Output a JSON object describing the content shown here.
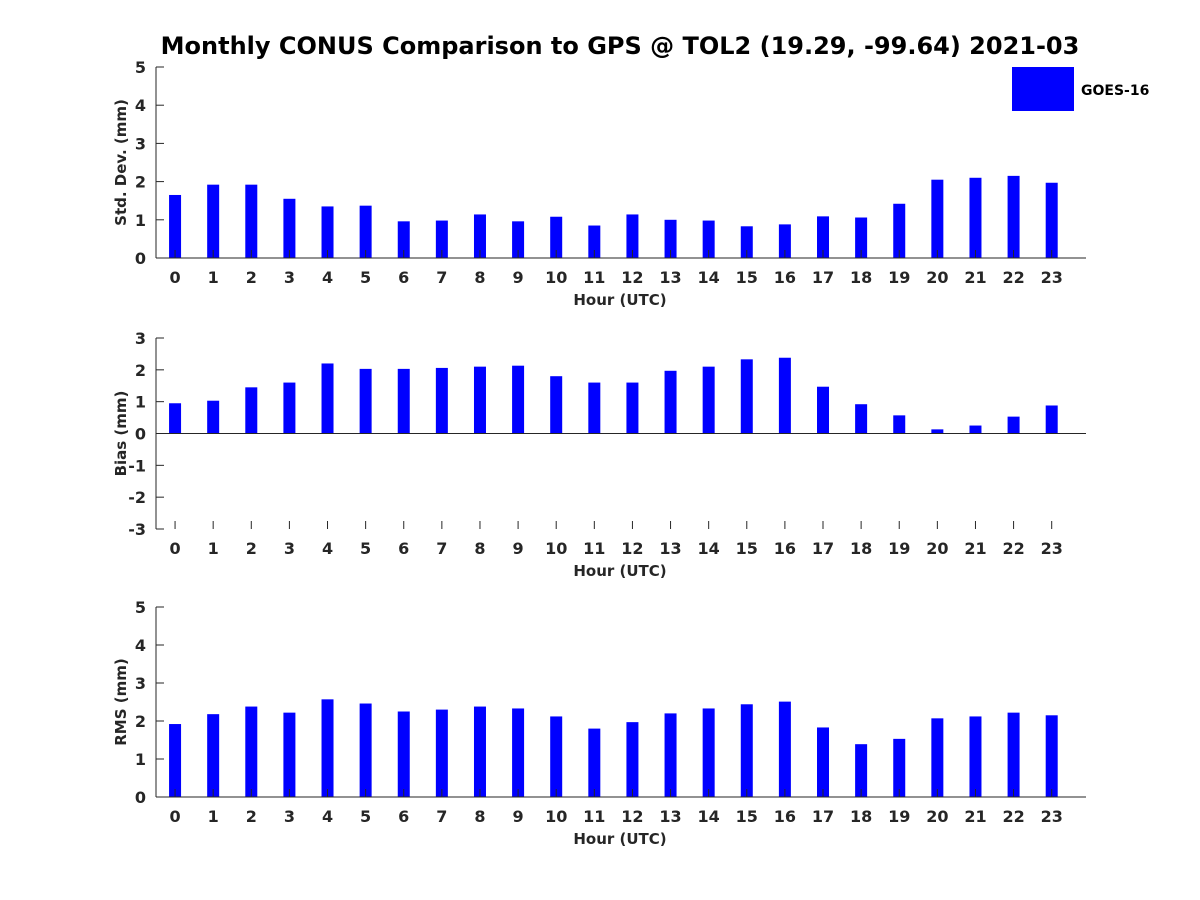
{
  "title": "Monthly CONUS Comparison to GPS @ TOL2 (19.29, -99.64) 2021-03",
  "legend": {
    "label": "GOES-16",
    "color": "#0000ff"
  },
  "colors": {
    "bar": "#0000ff",
    "axis": "#262626"
  },
  "chart_data": [
    {
      "type": "bar",
      "title": "",
      "xlabel": "Hour (UTC)",
      "ylabel": "Std. Dev. (mm)",
      "categories": [
        "0",
        "1",
        "2",
        "3",
        "4",
        "5",
        "6",
        "7",
        "8",
        "9",
        "10",
        "11",
        "12",
        "13",
        "14",
        "15",
        "16",
        "17",
        "18",
        "19",
        "20",
        "21",
        "22",
        "23"
      ],
      "values": [
        1.65,
        1.92,
        1.92,
        1.55,
        1.35,
        1.37,
        0.96,
        0.98,
        1.14,
        0.96,
        1.08,
        0.85,
        1.14,
        1.0,
        0.98,
        0.83,
        0.88,
        1.09,
        1.06,
        1.42,
        2.05,
        2.1,
        2.15,
        1.97
      ],
      "ylim": [
        0,
        5
      ],
      "yticks": [
        "0",
        "1",
        "2",
        "3",
        "4",
        "5"
      ],
      "series_name": "GOES-16"
    },
    {
      "type": "bar",
      "title": "",
      "xlabel": "Hour (UTC)",
      "ylabel": "Bias (mm)",
      "categories": [
        "0",
        "1",
        "2",
        "3",
        "4",
        "5",
        "6",
        "7",
        "8",
        "9",
        "10",
        "11",
        "12",
        "13",
        "14",
        "15",
        "16",
        "17",
        "18",
        "19",
        "20",
        "21",
        "22",
        "23"
      ],
      "values": [
        0.95,
        1.03,
        1.45,
        1.6,
        2.2,
        2.03,
        2.03,
        2.06,
        2.1,
        2.13,
        1.8,
        1.6,
        1.6,
        1.97,
        2.1,
        2.33,
        2.38,
        1.47,
        0.92,
        0.57,
        0.13,
        0.25,
        0.53,
        0.88
      ],
      "ylim": [
        -3,
        3
      ],
      "yticks": [
        "-3",
        "-2",
        "-1",
        "0",
        "1",
        "2",
        "3"
      ],
      "series_name": "GOES-16"
    },
    {
      "type": "bar",
      "title": "",
      "xlabel": "Hour (UTC)",
      "ylabel": "RMS (mm)",
      "categories": [
        "0",
        "1",
        "2",
        "3",
        "4",
        "5",
        "6",
        "7",
        "8",
        "9",
        "10",
        "11",
        "12",
        "13",
        "14",
        "15",
        "16",
        "17",
        "18",
        "19",
        "20",
        "21",
        "22",
        "23"
      ],
      "values": [
        1.92,
        2.18,
        2.38,
        2.22,
        2.57,
        2.46,
        2.25,
        2.3,
        2.38,
        2.33,
        2.12,
        1.8,
        1.97,
        2.2,
        2.33,
        2.44,
        2.51,
        1.83,
        1.39,
        1.53,
        2.07,
        2.12,
        2.22,
        2.15
      ],
      "ylim": [
        0,
        5
      ],
      "yticks": [
        "0",
        "1",
        "2",
        "3",
        "4",
        "5"
      ],
      "series_name": "GOES-16"
    }
  ]
}
